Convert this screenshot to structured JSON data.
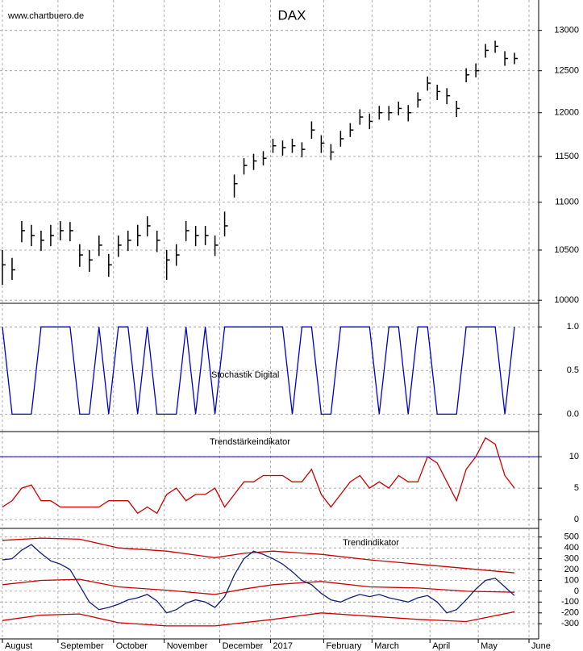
{
  "chart_data": [
    {
      "type": "ohlc",
      "title": "DAX",
      "source": "www.chartbuero.de",
      "color": "#000000",
      "log_scale": true,
      "grid": true,
      "x": [
        0,
        4,
        8,
        12,
        16,
        20,
        24,
        28,
        32,
        36,
        40,
        44,
        48,
        52,
        56,
        60,
        64,
        68,
        72,
        76,
        80,
        84,
        88,
        92,
        96,
        100,
        104,
        108,
        112,
        116,
        120,
        124,
        128,
        132,
        136,
        140,
        144,
        148,
        152,
        156,
        160,
        164,
        168,
        172,
        176,
        180,
        184,
        188,
        192,
        196,
        200,
        204,
        208,
        212
      ],
      "high": [
        10500,
        10420,
        10800,
        10760,
        10700,
        10760,
        10800,
        10790,
        10560,
        10500,
        10650,
        10460,
        10650,
        10700,
        10760,
        10850,
        10700,
        10500,
        10560,
        10800,
        10750,
        10750,
        10650,
        10900,
        11300,
        11480,
        11530,
        11560,
        11700,
        11680,
        11700,
        11660,
        11900,
        11740,
        11640,
        11790,
        11880,
        12040,
        11990,
        12080,
        12080,
        12130,
        12090,
        12240,
        12430,
        12330,
        12290,
        12140,
        12530,
        12590,
        12830,
        12870,
        12740,
        12720
      ],
      "low": [
        10150,
        10200,
        10580,
        10540,
        10490,
        10540,
        10600,
        10590,
        10330,
        10280,
        10440,
        10230,
        10430,
        10490,
        10540,
        10640,
        10480,
        10200,
        10340,
        10590,
        10540,
        10550,
        10440,
        10640,
        11050,
        11300,
        11350,
        11400,
        11540,
        11510,
        11540,
        11490,
        11700,
        11540,
        11460,
        11610,
        11720,
        11860,
        11810,
        11920,
        11910,
        11970,
        11900,
        12060,
        12260,
        12150,
        12100,
        11950,
        12360,
        12420,
        12660,
        12720,
        12560,
        12580
      ],
      "close": [
        10350,
        10300,
        10700,
        10650,
        10600,
        10650,
        10700,
        10700,
        10450,
        10400,
        10550,
        10350,
        10550,
        10600,
        10650,
        10750,
        10600,
        10400,
        10450,
        10700,
        10650,
        10650,
        10550,
        10750,
        11200,
        11400,
        11450,
        11480,
        11620,
        11600,
        11620,
        11580,
        11800,
        11650,
        11550,
        11700,
        11800,
        11950,
        11900,
        12000,
        12000,
        12050,
        12000,
        12150,
        12350,
        12250,
        12200,
        12050,
        12450,
        12500,
        12750,
        12800,
        12650,
        12650
      ],
      "ylim": [
        9970,
        13390
      ],
      "yticks": [
        10000,
        10500,
        11000,
        11500,
        12000,
        12500,
        13000
      ]
    },
    {
      "type": "line",
      "title": "Stochastik Digital",
      "title_color": "#0000cc",
      "grid": true,
      "x": [
        0,
        4,
        8,
        12,
        16,
        20,
        24,
        28,
        32,
        36,
        40,
        44,
        48,
        52,
        56,
        60,
        64,
        68,
        72,
        76,
        80,
        84,
        88,
        92,
        96,
        100,
        104,
        108,
        112,
        116,
        120,
        124,
        128,
        132,
        136,
        140,
        144,
        148,
        152,
        156,
        160,
        164,
        168,
        172,
        176,
        180,
        184,
        188,
        192,
        196,
        200,
        204,
        208,
        212
      ],
      "series": [
        {
          "color": "#0000cc",
          "values": [
            1,
            0,
            0,
            0,
            1,
            1,
            1,
            1,
            0,
            0,
            1,
            0,
            1,
            1,
            0,
            1,
            0,
            0,
            0,
            1,
            0,
            1,
            0,
            1,
            1,
            1,
            1,
            1,
            1,
            1,
            0,
            1,
            1,
            0,
            0,
            1,
            1,
            1,
            1,
            0,
            1,
            1,
            0,
            1,
            1,
            0,
            0,
            0,
            1,
            1,
            1,
            1,
            0,
            1
          ]
        }
      ],
      "ylim": [
        -0.2,
        1.27
      ],
      "yticks": [
        {
          "value": 0,
          "label": "0.0"
        },
        0.5,
        {
          "value": 1,
          "label": "1.0"
        }
      ]
    },
    {
      "type": "line",
      "title": "Trendstärkeindikator",
      "title_color": "#cc0000",
      "grid": true,
      "hline": 10,
      "hline_color": "#0000cc",
      "x": [
        0,
        4,
        8,
        12,
        16,
        20,
        24,
        28,
        32,
        36,
        40,
        44,
        48,
        52,
        56,
        60,
        64,
        68,
        72,
        76,
        80,
        84,
        88,
        92,
        96,
        100,
        104,
        108,
        112,
        116,
        120,
        124,
        128,
        132,
        136,
        140,
        144,
        148,
        152,
        156,
        160,
        164,
        168,
        172,
        176,
        180,
        184,
        188,
        192,
        196,
        200,
        204,
        208,
        212
      ],
      "series": [
        {
          "color": "#cc0000",
          "values": [
            2,
            3,
            5,
            5.5,
            3,
            3,
            2,
            2,
            2,
            2,
            2,
            3,
            3,
            3,
            1,
            2,
            1,
            4,
            5,
            3,
            4,
            4,
            5,
            2,
            4,
            6,
            6,
            7,
            7,
            7,
            6,
            6,
            8,
            4,
            2,
            4,
            6,
            7,
            5,
            6,
            5,
            7,
            6,
            6,
            10,
            9,
            6,
            3,
            8,
            10,
            13,
            12,
            7,
            5
          ]
        }
      ],
      "ylim": [
        -1.4,
        14
      ],
      "yticks": [
        0,
        5,
        10
      ]
    },
    {
      "type": "line",
      "title": "Trendindikator",
      "title_color": "#0000cc",
      "grid": true,
      "x": [
        0,
        4,
        8,
        12,
        16,
        20,
        24,
        28,
        32,
        36,
        40,
        44,
        48,
        52,
        56,
        60,
        64,
        68,
        72,
        76,
        80,
        84,
        88,
        92,
        96,
        100,
        104,
        108,
        112,
        116,
        120,
        124,
        128,
        132,
        136,
        140,
        144,
        148,
        152,
        156,
        160,
        164,
        168,
        172,
        176,
        180,
        184,
        188,
        192,
        196,
        200,
        204,
        208,
        212
      ],
      "series": [
        {
          "color": "#cc0000",
          "x": [
            0,
            16,
            32,
            48,
            68,
            88,
            100,
            112,
            132,
            152,
            172,
            192,
            212
          ],
          "values": [
            470,
            490,
            480,
            400,
            370,
            310,
            350,
            370,
            340,
            290,
            250,
            210,
            170
          ]
        },
        {
          "color": "#cc0000",
          "x": [
            0,
            16,
            32,
            48,
            68,
            88,
            100,
            112,
            132,
            152,
            172,
            192,
            212
          ],
          "values": [
            60,
            100,
            110,
            40,
            10,
            -30,
            20,
            60,
            90,
            40,
            30,
            0,
            -10
          ]
        },
        {
          "color": "#cc0000",
          "x": [
            0,
            16,
            32,
            48,
            68,
            88,
            100,
            112,
            132,
            152,
            172,
            192,
            212
          ],
          "values": [
            -270,
            -220,
            -210,
            -290,
            -320,
            -320,
            -290,
            -260,
            -200,
            -230,
            -260,
            -280,
            -190
          ]
        },
        {
          "color": "#10207a",
          "values": [
            290,
            300,
            380,
            430,
            350,
            280,
            250,
            200,
            50,
            -100,
            -170,
            -150,
            -120,
            -80,
            -60,
            -30,
            -90,
            -200,
            -170,
            -110,
            -80,
            -100,
            -150,
            -50,
            150,
            300,
            370,
            340,
            300,
            250,
            180,
            100,
            60,
            -20,
            -80,
            -100,
            -60,
            -30,
            -50,
            -30,
            -60,
            -80,
            -100,
            -60,
            -40,
            -100,
            -200,
            -170,
            -80,
            20,
            100,
            120,
            40,
            -40
          ]
        }
      ],
      "ylim": [
        -440,
        580
      ],
      "yticks": [
        -300,
        -200,
        -100,
        0,
        100,
        200,
        300,
        400,
        500
      ],
      "xlim": [
        -1,
        222
      ],
      "xticks": [
        {
          "value": 0,
          "label": "August"
        },
        {
          "value": 23,
          "label": "September"
        },
        {
          "value": 46,
          "label": "October"
        },
        {
          "value": 67,
          "label": "November"
        },
        {
          "value": 90,
          "label": "December"
        },
        {
          "value": 111,
          "label": "2017"
        },
        {
          "value": 133,
          "label": "February"
        },
        {
          "value": 153,
          "label": "March"
        },
        {
          "value": 177,
          "label": "April"
        },
        {
          "value": 197,
          "label": "May"
        },
        {
          "value": 218,
          "label": "June"
        }
      ]
    }
  ]
}
